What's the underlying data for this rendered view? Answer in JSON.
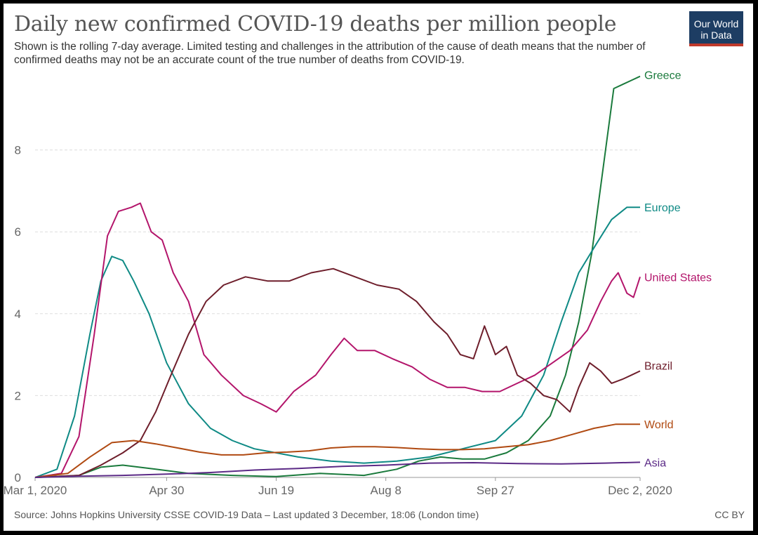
{
  "header": {
    "title": "Daily new confirmed COVID-19 deaths per million people",
    "subtitle": "Shown is the rolling 7-day average. Limited testing and challenges in the attribution of the cause of death means that the number of confirmed deaths may not be an accurate count of the true number of deaths from COVID-19."
  },
  "logo": {
    "line1": "Our World",
    "line2": "in Data"
  },
  "footer": {
    "source": "Source: Johns Hopkins University CSSE COVID-19 Data – Last updated 3 December, 18:06 (London time)",
    "license": "CC BY"
  },
  "colors": {
    "greece": "#1a7a3c",
    "europe": "#0f8a85",
    "united_states": "#b3156b",
    "brazil": "#6e1e2b",
    "world": "#b04a12",
    "asia": "#5b2a86"
  },
  "chart_data": {
    "type": "line",
    "title": "Daily new confirmed COVID-19 deaths per million people",
    "xlabel": "",
    "ylabel": "",
    "x_ticks": [
      "Mar 1, 2020",
      "Apr 30",
      "Jun 19",
      "Aug 8",
      "Sep 27",
      "Dec 2, 2020"
    ],
    "y_ticks": [
      "0",
      "2",
      "4",
      "6",
      "8"
    ],
    "ylim": [
      0,
      9.8
    ],
    "xlim_days": [
      0,
      276
    ],
    "grid": "horizontal-dashed",
    "legend": "labels at line ends (right)",
    "series": [
      {
        "name": "Greece",
        "color_key": "greece",
        "points": [
          [
            0,
            0
          ],
          [
            20,
            0.05
          ],
          [
            30,
            0.25
          ],
          [
            40,
            0.3
          ],
          [
            55,
            0.2
          ],
          [
            70,
            0.1
          ],
          [
            90,
            0.05
          ],
          [
            110,
            0.02
          ],
          [
            130,
            0.1
          ],
          [
            150,
            0.05
          ],
          [
            165,
            0.2
          ],
          [
            175,
            0.4
          ],
          [
            185,
            0.5
          ],
          [
            195,
            0.45
          ],
          [
            205,
            0.45
          ],
          [
            215,
            0.6
          ],
          [
            225,
            0.9
          ],
          [
            235,
            1.5
          ],
          [
            242,
            2.5
          ],
          [
            248,
            3.8
          ],
          [
            254,
            5.5
          ],
          [
            259,
            7.5
          ],
          [
            264,
            9.5
          ],
          [
            268,
            9.6
          ],
          [
            272,
            9.7
          ],
          [
            276,
            9.8
          ]
        ]
      },
      {
        "name": "Europe",
        "color_key": "europe",
        "points": [
          [
            0,
            0
          ],
          [
            10,
            0.2
          ],
          [
            18,
            1.5
          ],
          [
            25,
            3.5
          ],
          [
            30,
            4.8
          ],
          [
            35,
            5.4
          ],
          [
            40,
            5.3
          ],
          [
            45,
            4.8
          ],
          [
            52,
            4.0
          ],
          [
            60,
            2.8
          ],
          [
            70,
            1.8
          ],
          [
            80,
            1.2
          ],
          [
            90,
            0.9
          ],
          [
            100,
            0.7
          ],
          [
            110,
            0.6
          ],
          [
            120,
            0.5
          ],
          [
            135,
            0.4
          ],
          [
            150,
            0.35
          ],
          [
            165,
            0.4
          ],
          [
            180,
            0.5
          ],
          [
            195,
            0.7
          ],
          [
            210,
            0.9
          ],
          [
            222,
            1.5
          ],
          [
            232,
            2.5
          ],
          [
            240,
            3.8
          ],
          [
            248,
            5.0
          ],
          [
            256,
            5.7
          ],
          [
            263,
            6.3
          ],
          [
            270,
            6.6
          ],
          [
            276,
            6.6
          ]
        ]
      },
      {
        "name": "United States",
        "color_key": "united_states",
        "points": [
          [
            0,
            0
          ],
          [
            12,
            0.1
          ],
          [
            20,
            1.0
          ],
          [
            27,
            3.5
          ],
          [
            33,
            5.9
          ],
          [
            38,
            6.5
          ],
          [
            44,
            6.6
          ],
          [
            48,
            6.7
          ],
          [
            53,
            6.0
          ],
          [
            58,
            5.8
          ],
          [
            63,
            5.0
          ],
          [
            70,
            4.3
          ],
          [
            77,
            3.0
          ],
          [
            85,
            2.5
          ],
          [
            95,
            2.0
          ],
          [
            103,
            1.8
          ],
          [
            110,
            1.6
          ],
          [
            118,
            2.1
          ],
          [
            128,
            2.5
          ],
          [
            135,
            3.0
          ],
          [
            141,
            3.4
          ],
          [
            147,
            3.1
          ],
          [
            155,
            3.1
          ],
          [
            163,
            2.9
          ],
          [
            172,
            2.7
          ],
          [
            180,
            2.4
          ],
          [
            188,
            2.2
          ],
          [
            196,
            2.2
          ],
          [
            204,
            2.1
          ],
          [
            212,
            2.1
          ],
          [
            220,
            2.3
          ],
          [
            228,
            2.5
          ],
          [
            236,
            2.8
          ],
          [
            244,
            3.1
          ],
          [
            252,
            3.6
          ],
          [
            258,
            4.3
          ],
          [
            263,
            4.8
          ],
          [
            266,
            5.0
          ],
          [
            270,
            4.5
          ],
          [
            273,
            4.4
          ],
          [
            276,
            4.9
          ]
        ]
      },
      {
        "name": "Brazil",
        "color_key": "brazil",
        "points": [
          [
            0,
            0
          ],
          [
            20,
            0.05
          ],
          [
            30,
            0.3
          ],
          [
            40,
            0.6
          ],
          [
            48,
            0.9
          ],
          [
            55,
            1.6
          ],
          [
            62,
            2.5
          ],
          [
            70,
            3.5
          ],
          [
            78,
            4.3
          ],
          [
            86,
            4.7
          ],
          [
            96,
            4.9
          ],
          [
            106,
            4.8
          ],
          [
            116,
            4.8
          ],
          [
            126,
            5.0
          ],
          [
            136,
            5.1
          ],
          [
            146,
            4.9
          ],
          [
            156,
            4.7
          ],
          [
            166,
            4.6
          ],
          [
            174,
            4.3
          ],
          [
            182,
            3.8
          ],
          [
            188,
            3.5
          ],
          [
            194,
            3.0
          ],
          [
            200,
            2.9
          ],
          [
            205,
            3.7
          ],
          [
            210,
            3.0
          ],
          [
            215,
            3.2
          ],
          [
            220,
            2.5
          ],
          [
            226,
            2.3
          ],
          [
            232,
            2.0
          ],
          [
            238,
            1.9
          ],
          [
            244,
            1.6
          ],
          [
            248,
            2.2
          ],
          [
            253,
            2.8
          ],
          [
            258,
            2.6
          ],
          [
            263,
            2.3
          ],
          [
            268,
            2.4
          ],
          [
            272,
            2.5
          ],
          [
            276,
            2.6
          ]
        ]
      },
      {
        "name": "World",
        "color_key": "world",
        "points": [
          [
            0,
            0
          ],
          [
            15,
            0.1
          ],
          [
            25,
            0.5
          ],
          [
            35,
            0.85
          ],
          [
            45,
            0.9
          ],
          [
            55,
            0.82
          ],
          [
            65,
            0.72
          ],
          [
            75,
            0.62
          ],
          [
            85,
            0.55
          ],
          [
            95,
            0.55
          ],
          [
            105,
            0.6
          ],
          [
            115,
            0.62
          ],
          [
            125,
            0.65
          ],
          [
            135,
            0.72
          ],
          [
            145,
            0.75
          ],
          [
            155,
            0.75
          ],
          [
            165,
            0.73
          ],
          [
            175,
            0.7
          ],
          [
            185,
            0.68
          ],
          [
            195,
            0.68
          ],
          [
            205,
            0.7
          ],
          [
            215,
            0.75
          ],
          [
            225,
            0.8
          ],
          [
            235,
            0.9
          ],
          [
            245,
            1.05
          ],
          [
            255,
            1.2
          ],
          [
            265,
            1.3
          ],
          [
            276,
            1.3
          ]
        ]
      },
      {
        "name": "Asia",
        "color_key": "asia",
        "points": [
          [
            0,
            0
          ],
          [
            20,
            0.03
          ],
          [
            40,
            0.05
          ],
          [
            60,
            0.08
          ],
          [
            80,
            0.12
          ],
          [
            100,
            0.18
          ],
          [
            120,
            0.22
          ],
          [
            140,
            0.27
          ],
          [
            160,
            0.3
          ],
          [
            180,
            0.35
          ],
          [
            200,
            0.36
          ],
          [
            220,
            0.34
          ],
          [
            240,
            0.33
          ],
          [
            260,
            0.35
          ],
          [
            276,
            0.37
          ]
        ]
      }
    ]
  }
}
